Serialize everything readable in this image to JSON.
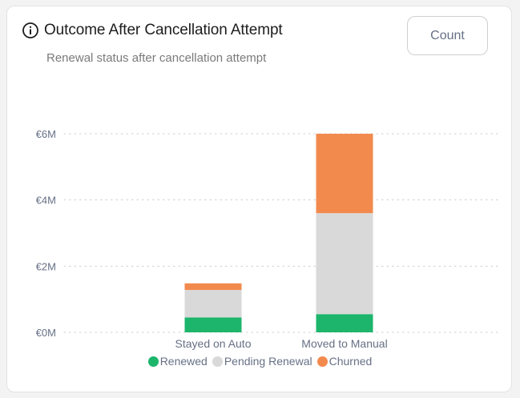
{
  "header": {
    "title": "Outcome After Cancellation Attempt",
    "subtitle": "Renewal status after cancellation attempt",
    "icon": "info-icon",
    "count_button_label": "Count"
  },
  "colors": {
    "Renewed": "#1db56b",
    "Pending Renewal": "#d9d9d9",
    "Churned": "#f28a4e",
    "grid": "#cccccc",
    "tick": "#667085"
  },
  "chart_data": {
    "type": "bar",
    "stacked": true,
    "categories": [
      "Stayed on Auto",
      "Moved to Manual"
    ],
    "series": [
      {
        "name": "Renewed",
        "values": [
          0.45,
          0.55
        ]
      },
      {
        "name": "Pending Renewal",
        "values": [
          0.83,
          3.05
        ]
      },
      {
        "name": "Churned",
        "values": [
          0.2,
          2.4
        ]
      }
    ],
    "ylim": [
      0,
      6
    ],
    "yticks": [
      0,
      2,
      4,
      6
    ],
    "ytick_labels": [
      "€0M",
      "€2M",
      "€4M",
      "€6M"
    ],
    "grid": true,
    "legend": "bottom-center"
  }
}
